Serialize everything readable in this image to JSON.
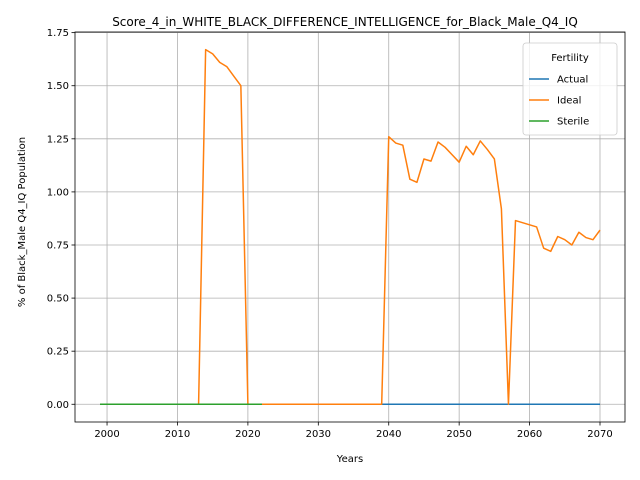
{
  "chart_data": {
    "type": "line",
    "title": "Score_4_in_WHITE_BLACK_DIFFERENCE_INTELLIGENCE_for_Black_Male_Q4_IQ",
    "xlabel": "Years",
    "ylabel": "% of Black_Male Q4_IQ Population",
    "xlim": [
      1995.45,
      2073.55
    ],
    "ylim": [
      -0.0835,
      1.753
    ],
    "xticks": [
      2000,
      2010,
      2020,
      2030,
      2040,
      2050,
      2060,
      2070
    ],
    "yticks": [
      "0.00",
      "0.25",
      "0.50",
      "0.75",
      "1.00",
      "1.25",
      "1.50",
      "1.75"
    ],
    "grid": true,
    "legend": {
      "title": "Fertility",
      "position": "upper right"
    },
    "series": [
      {
        "name": "Actual",
        "color": "#1f77b4",
        "x": [
          2039,
          2070
        ],
        "y": [
          0.0,
          0.0
        ]
      },
      {
        "name": "Ideal",
        "color": "#ff7f0e",
        "x": [
          2013,
          2014,
          2015,
          2016,
          2017,
          2018,
          2019,
          2020,
          2020.5,
          2039,
          2040,
          2041,
          2042,
          2043,
          2044,
          2045,
          2046,
          2047,
          2048,
          2049,
          2050,
          2051,
          2052,
          2053,
          2054,
          2055,
          2056,
          2057,
          2058,
          2059,
          2060,
          2061,
          2062,
          2063,
          2064,
          2065,
          2066,
          2067,
          2068,
          2069,
          2070
        ],
        "y": [
          0.0,
          1.67,
          1.65,
          1.61,
          1.59,
          1.545,
          1.5,
          0.0,
          0.0,
          0.0,
          1.26,
          1.23,
          1.22,
          1.06,
          1.045,
          1.155,
          1.145,
          1.235,
          1.21,
          1.175,
          1.14,
          1.215,
          1.175,
          1.24,
          1.2,
          1.155,
          0.92,
          0.0,
          0.865,
          0.855,
          0.845,
          0.835,
          0.735,
          0.72,
          0.79,
          0.775,
          0.75,
          0.81,
          0.785,
          0.775,
          0.82
        ]
      },
      {
        "name": "Sterile",
        "color": "#2ca02c",
        "x": [
          1999,
          2022
        ],
        "y": [
          0.0,
          0.0
        ]
      }
    ]
  }
}
